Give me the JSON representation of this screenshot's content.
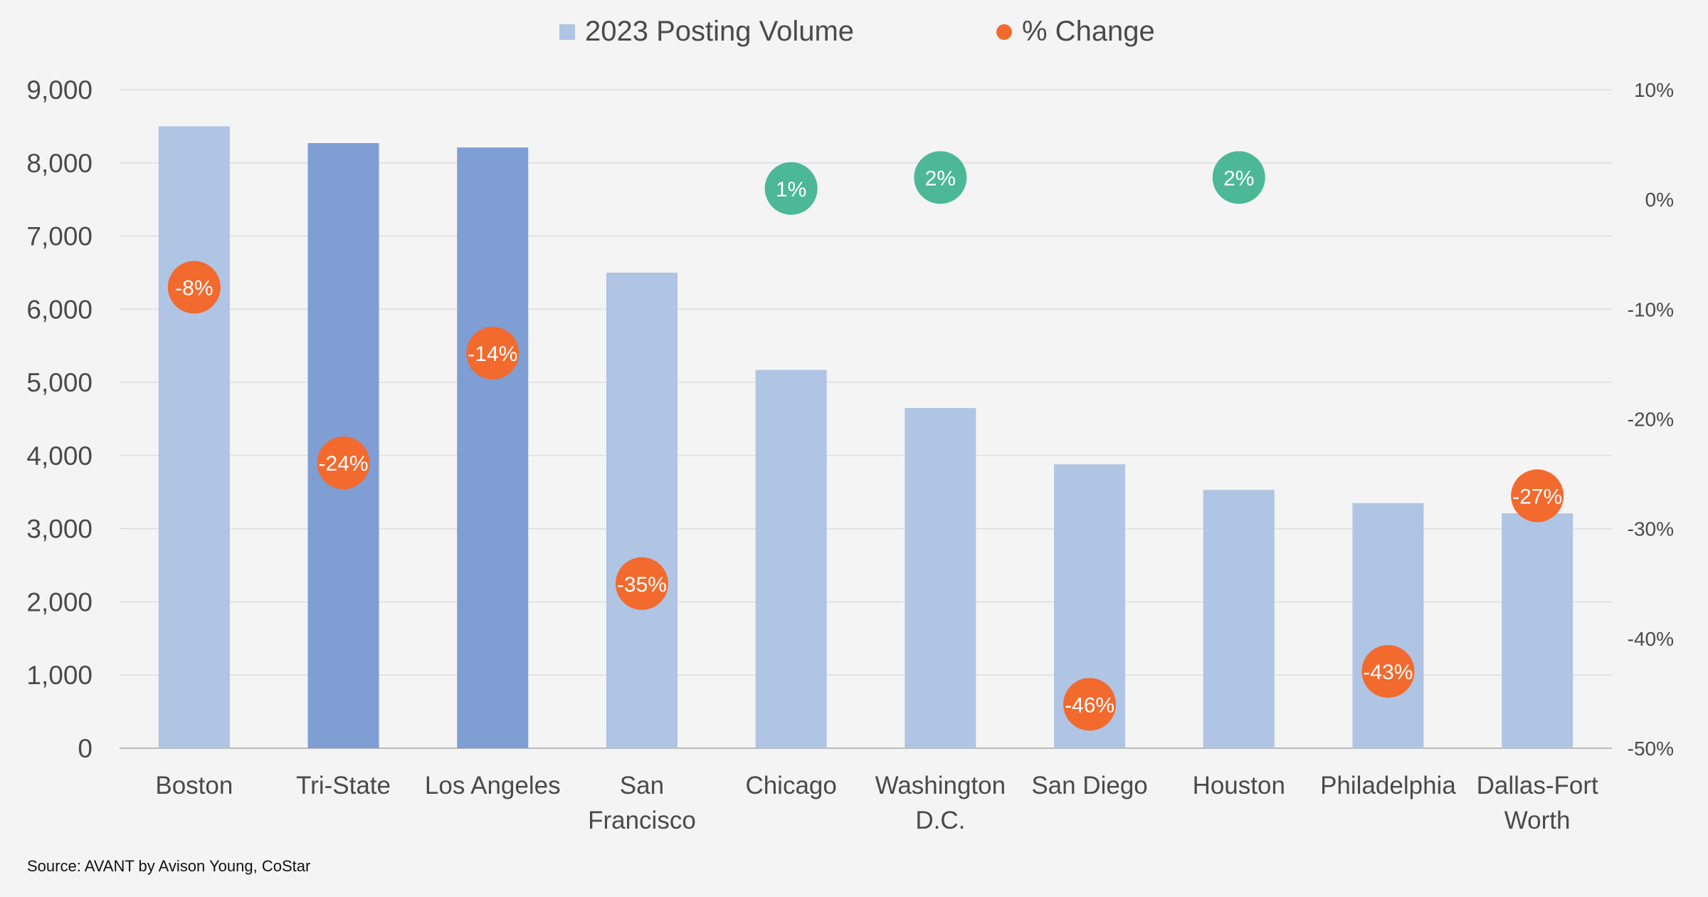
{
  "chart_data": {
    "type": "bar",
    "title": "",
    "xlabel": "",
    "ylabel": "",
    "categories": [
      "Boston",
      "Tri-State",
      "Los Angeles",
      "San Francisco",
      "Chicago",
      "Washington D.C.",
      "San Diego",
      "Houston",
      "Philadelphia",
      "Dallas-Fort Worth"
    ],
    "category_lines": [
      [
        "Boston"
      ],
      [
        "Tri-State"
      ],
      [
        "Los Angeles"
      ],
      [
        "San",
        "Francisco"
      ],
      [
        "Chicago"
      ],
      [
        "Washington",
        "D.C."
      ],
      [
        "San Diego"
      ],
      [
        "Houston"
      ],
      [
        "Philadelphia"
      ],
      [
        "Dallas-Fort",
        "Worth"
      ]
    ],
    "series": [
      {
        "name": "2023 Posting Volume",
        "type": "bar",
        "axis": "left",
        "values": [
          8500,
          8270,
          8210,
          6500,
          5170,
          4650,
          3880,
          3530,
          3350,
          3210
        ],
        "colors": [
          "#b0c4e4",
          "#7f9ed4",
          "#7f9ed4",
          "#b0c4e4",
          "#b0c4e4",
          "#b0c4e4",
          "#b0c4e4",
          "#b0c4e4",
          "#b0c4e4",
          "#b0c4e4"
        ]
      },
      {
        "name": "% Change",
        "type": "scatter",
        "axis": "right",
        "values": [
          -8,
          -24,
          -14,
          -35,
          1,
          2,
          -46,
          2,
          -43,
          -27
        ],
        "labels": [
          "-8%",
          "-24%",
          "-14%",
          "-35%",
          "1%",
          "2%",
          "-46%",
          "2%",
          "-43%",
          "-27%"
        ],
        "color_negative": "#f26a2e",
        "color_positive": "#4cb896"
      }
    ],
    "y_left": {
      "min": 0,
      "max": 9000,
      "ticks": [
        "0",
        "1,000",
        "2,000",
        "3,000",
        "4,000",
        "5,000",
        "6,000",
        "7,000",
        "8,000",
        "9,000"
      ]
    },
    "y_right": {
      "min": -50,
      "max": 10,
      "ticks": [
        "-50%",
        "-40%",
        "-30%",
        "-20%",
        "-10%",
        "0%",
        "10%"
      ]
    },
    "grid": true,
    "legend_position": "top-center"
  },
  "legend": {
    "bar_label": "2023 Posting Volume",
    "bar_color": "#b0c4e4",
    "dot_label": "% Change",
    "dot_color": "#f26a2e"
  },
  "source": "Source: AVANT by Avison Young, CoStar",
  "colors": {
    "grid": "#dddddd",
    "axis": "#bbbbbb",
    "text": "#4a4a4a",
    "background": "#f4f4f4"
  }
}
